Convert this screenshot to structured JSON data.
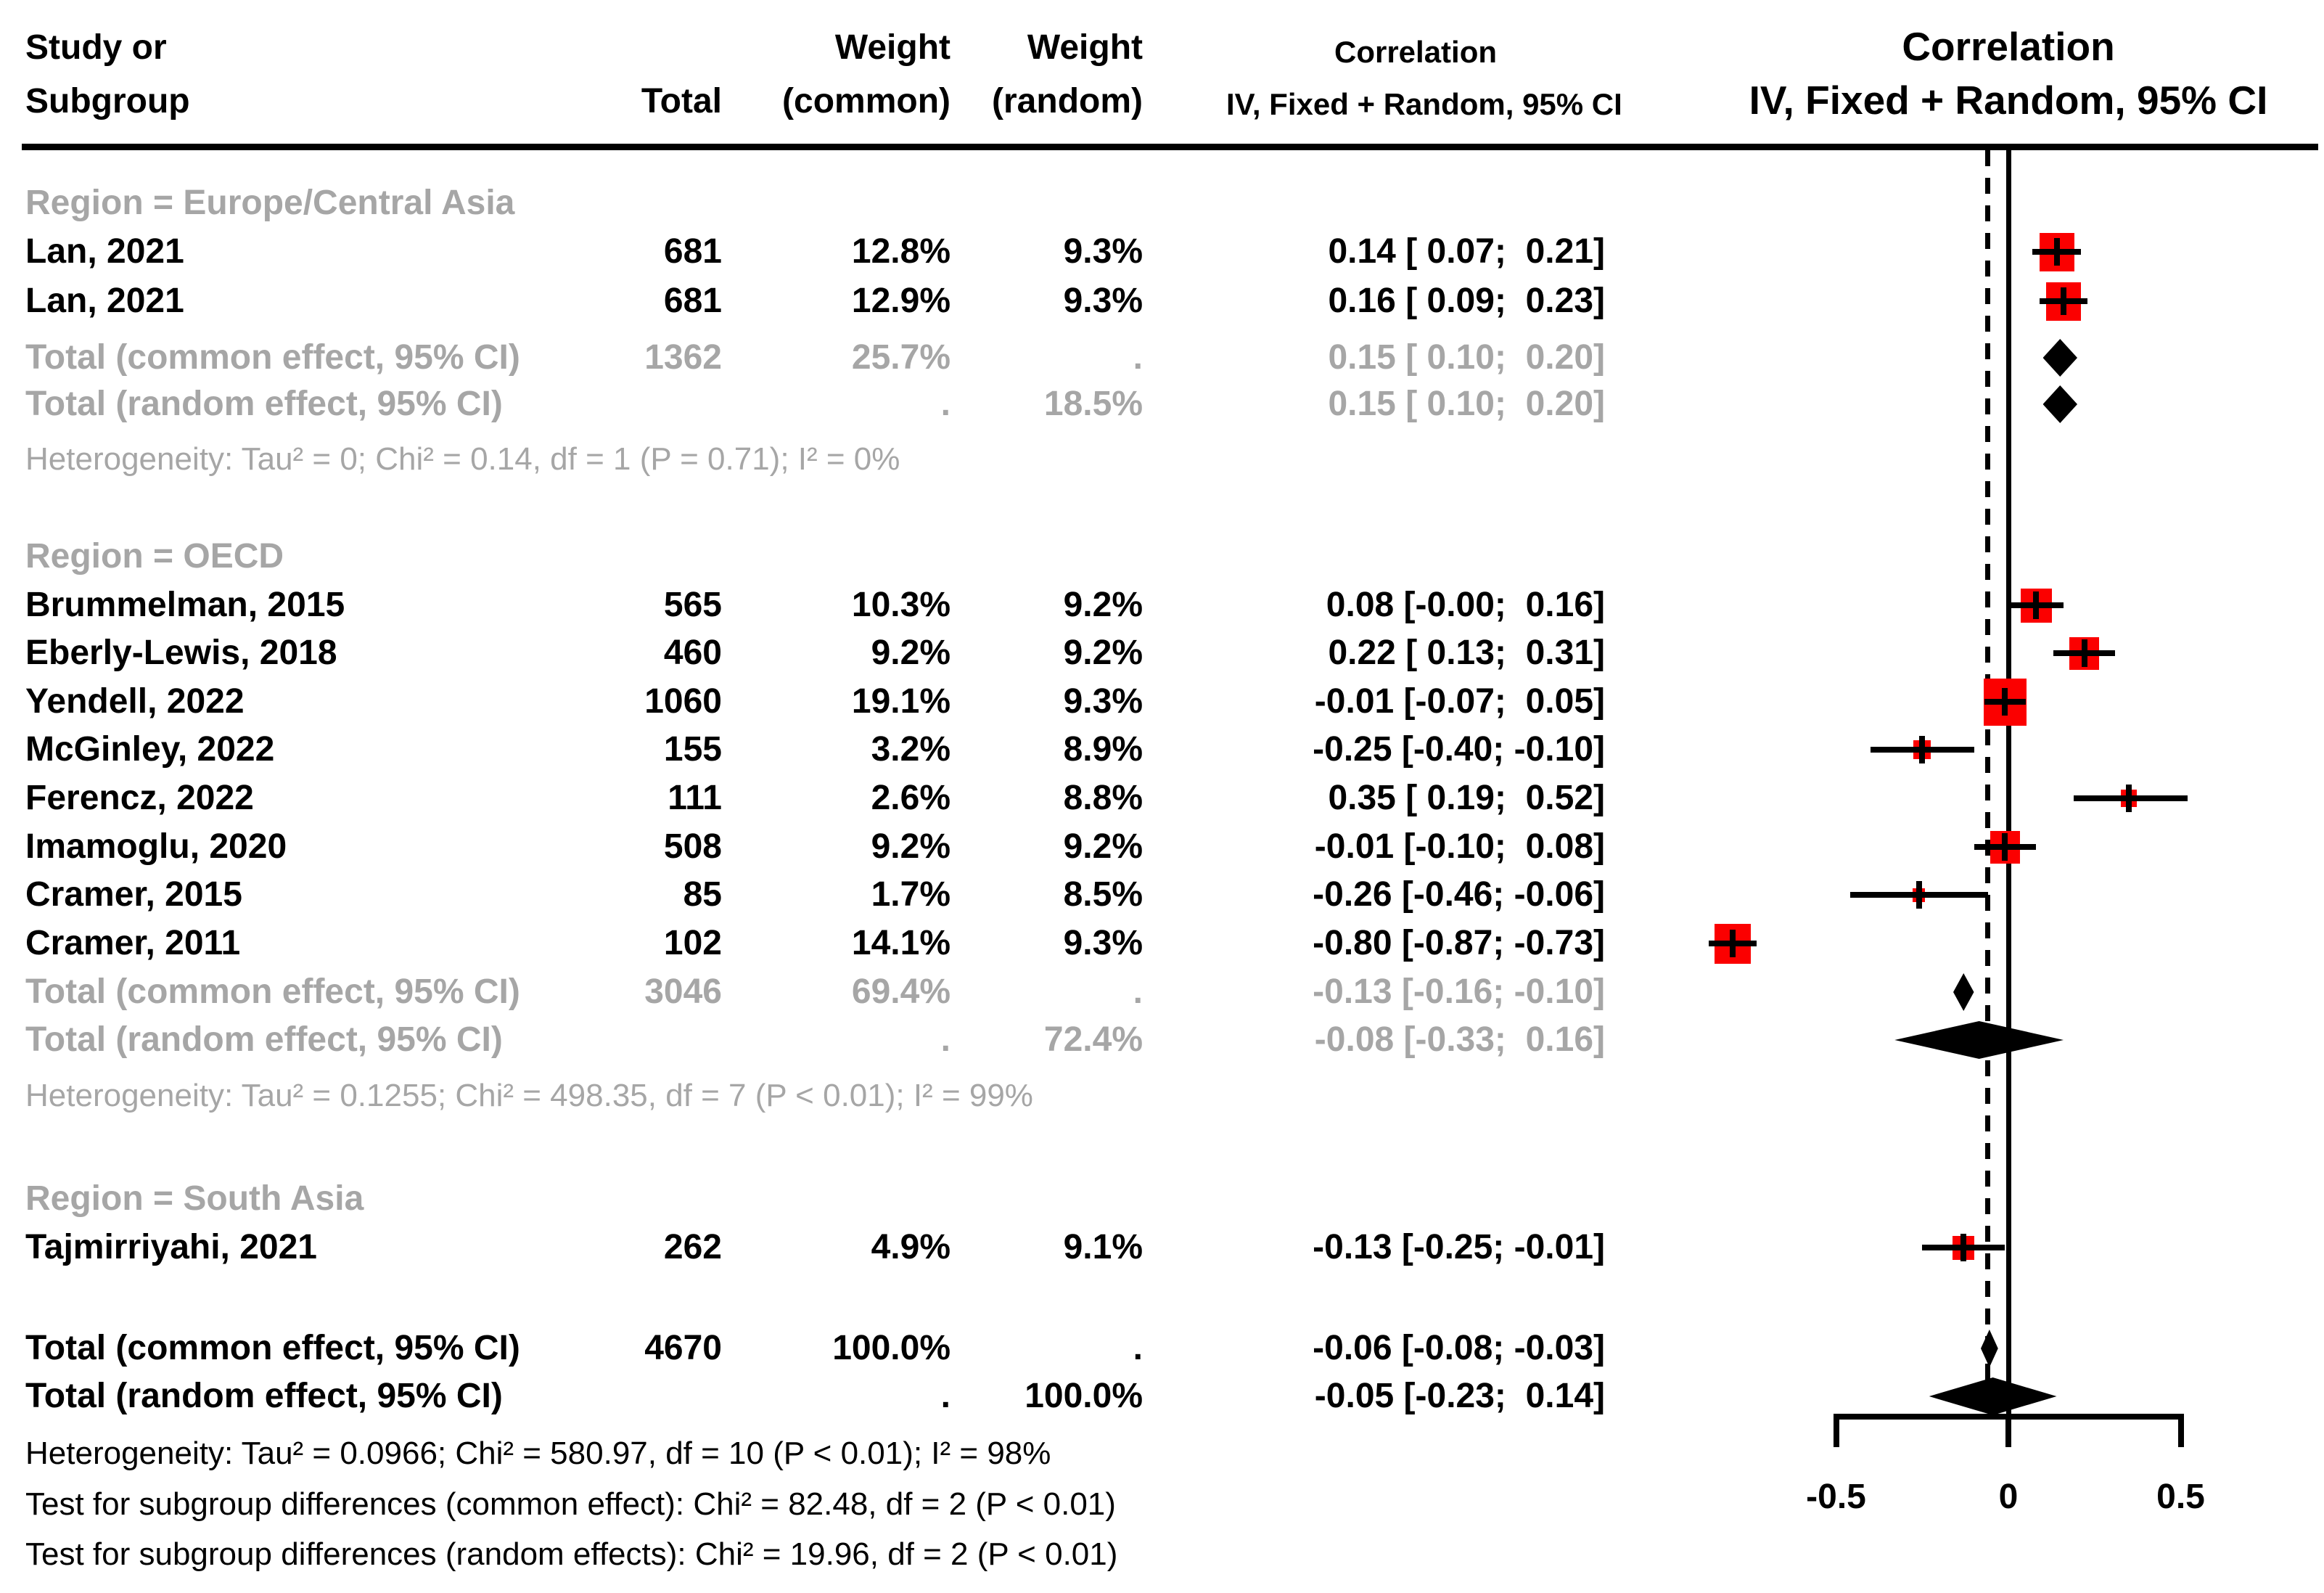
{
  "chart_data": {
    "type": "forest",
    "effect_measure": "Correlation",
    "header": {
      "study_line1": "Study or",
      "study_line2": "Subgroup",
      "total": "Total",
      "weight": "Weight",
      "weight_common": "(common)",
      "weight_random": "(random)",
      "correlation": "Correlation",
      "model": "IV, Fixed + Random, 95% CI"
    },
    "axis": {
      "tick_labels": [
        "-0.5",
        "0",
        "0.5"
      ],
      "tick_values": [
        -0.5,
        0,
        0.5
      ],
      "xlim": [
        -0.5,
        0.5
      ],
      "grid": false
    },
    "ref_lines": {
      "zero_line_x": 0,
      "pooled_dashed_x": -0.06
    },
    "colors": {
      "square": "#FB0000",
      "muted_text": "#A6A6A6",
      "text": "#000000",
      "line": "#000000"
    },
    "groups": [
      {
        "label": "Region = Europe/Central Asia",
        "studies": [
          {
            "name": "Lan, 2021",
            "total": "681",
            "w_common": "12.8%",
            "w_random": "9.3%",
            "ci": "0.14 [ 0.07;  0.21]",
            "est": 0.14,
            "lo": 0.07,
            "hi": 0.21,
            "wpct": 12.8
          },
          {
            "name": "Lan, 2021",
            "total": "681",
            "w_common": "12.9%",
            "w_random": "9.3%",
            "ci": "0.16 [ 0.09;  0.23]",
            "est": 0.16,
            "lo": 0.09,
            "hi": 0.23,
            "wpct": 12.9
          }
        ],
        "totals": [
          {
            "name": "Total (common effect, 95% CI)",
            "total": "1362",
            "w_common": "25.7%",
            "w_random": ".",
            "ci": "0.15 [ 0.10;  0.20]",
            "est": 0.15,
            "lo": 0.1,
            "hi": 0.2
          },
          {
            "name": "Total (random effect, 95% CI)",
            "total": "",
            "w_common": ".",
            "w_random": "18.5%",
            "ci": "0.15 [ 0.10;  0.20]",
            "est": 0.15,
            "lo": 0.1,
            "hi": 0.2
          }
        ],
        "heterogeneity": "Heterogeneity: Tau² = 0; Chi² = 0.14, df = 1 (P = 0.71); I² = 0%"
      },
      {
        "label": "Region = OECD",
        "studies": [
          {
            "name": "Brummelman, 2015",
            "total": "565",
            "w_common": "10.3%",
            "w_random": "9.2%",
            "ci": "0.08 [-0.00;  0.16]",
            "est": 0.08,
            "lo": -0.005,
            "hi": 0.16,
            "wpct": 10.3
          },
          {
            "name": "Eberly-Lewis, 2018",
            "total": "460",
            "w_common": "9.2%",
            "w_random": "9.2%",
            "ci": "0.22 [ 0.13;  0.31]",
            "est": 0.22,
            "lo": 0.13,
            "hi": 0.31,
            "wpct": 9.2
          },
          {
            "name": "Yendell, 2022",
            "total": "1060",
            "w_common": "19.1%",
            "w_random": "9.3%",
            "ci": "-0.01 [-0.07;  0.05]",
            "est": -0.01,
            "lo": -0.07,
            "hi": 0.05,
            "wpct": 19.1
          },
          {
            "name": "McGinley, 2022",
            "total": "155",
            "w_common": "3.2%",
            "w_random": "8.9%",
            "ci": "-0.25 [-0.40; -0.10]",
            "est": -0.25,
            "lo": -0.4,
            "hi": -0.1,
            "wpct": 3.2
          },
          {
            "name": "Ferencz, 2022",
            "total": "111",
            "w_common": "2.6%",
            "w_random": "8.8%",
            "ci": "0.35 [ 0.19;  0.52]",
            "est": 0.35,
            "lo": 0.19,
            "hi": 0.52,
            "wpct": 2.6
          },
          {
            "name": "Imamoglu, 2020",
            "total": "508",
            "w_common": "9.2%",
            "w_random": "9.2%",
            "ci": "-0.01 [-0.10;  0.08]",
            "est": -0.01,
            "lo": -0.1,
            "hi": 0.08,
            "wpct": 9.2
          },
          {
            "name": "Cramer, 2015",
            "total": "85",
            "w_common": "1.7%",
            "w_random": "8.5%",
            "ci": "-0.26 [-0.46; -0.06]",
            "est": -0.26,
            "lo": -0.46,
            "hi": -0.06,
            "wpct": 1.7
          },
          {
            "name": "Cramer, 2011",
            "total": "102",
            "w_common": "14.1%",
            "w_random": "9.3%",
            "ci": "-0.80 [-0.87; -0.73]",
            "est": -0.8,
            "lo": -0.87,
            "hi": -0.73,
            "wpct": 14.1
          }
        ],
        "totals": [
          {
            "name": "Total (common effect, 95% CI)",
            "total": "3046",
            "w_common": "69.4%",
            "w_random": ".",
            "ci": "-0.13 [-0.16; -0.10]",
            "est": -0.13,
            "lo": -0.16,
            "hi": -0.1
          },
          {
            "name": "Total (random effect, 95% CI)",
            "total": "",
            "w_common": ".",
            "w_random": "72.4%",
            "ci": "-0.08 [-0.33;  0.16]",
            "est": -0.08,
            "lo": -0.33,
            "hi": 0.16
          }
        ],
        "heterogeneity": "Heterogeneity: Tau² = 0.1255; Chi² = 498.35, df = 7 (P < 0.01); I² = 99%"
      },
      {
        "label": "Region = South Asia",
        "studies": [
          {
            "name": "Tajmirriyahi, 2021",
            "total": "262",
            "w_common": "4.9%",
            "w_random": "9.1%",
            "ci": "-0.13 [-0.25; -0.01]",
            "est": -0.13,
            "lo": -0.25,
            "hi": -0.01,
            "wpct": 4.9
          }
        ],
        "totals": [],
        "heterogeneity": ""
      }
    ],
    "overall": {
      "totals": [
        {
          "name": "Total (common effect, 95% CI)",
          "total": "4670",
          "w_common": "100.0%",
          "w_random": ".",
          "ci": "-0.06 [-0.08; -0.03]",
          "est": -0.06,
          "lo": -0.08,
          "hi": -0.03
        },
        {
          "name": "Total (random effect, 95% CI)",
          "total": "",
          "w_common": ".",
          "w_random": "100.0%",
          "ci": "-0.05 [-0.23;  0.14]",
          "est": -0.05,
          "lo": -0.23,
          "hi": 0.14
        }
      ],
      "heterogeneity": "Heterogeneity: Tau² = 0.0966; Chi² = 580.97, df = 10 (P < 0.01); I² = 98%",
      "tests": [
        "Test for subgroup differences (common effect): Chi² = 82.48, df = 2 (P < 0.01)",
        "Test for subgroup differences (random effects): Chi² = 19.96, df = 2 (P < 0.01)"
      ]
    }
  }
}
